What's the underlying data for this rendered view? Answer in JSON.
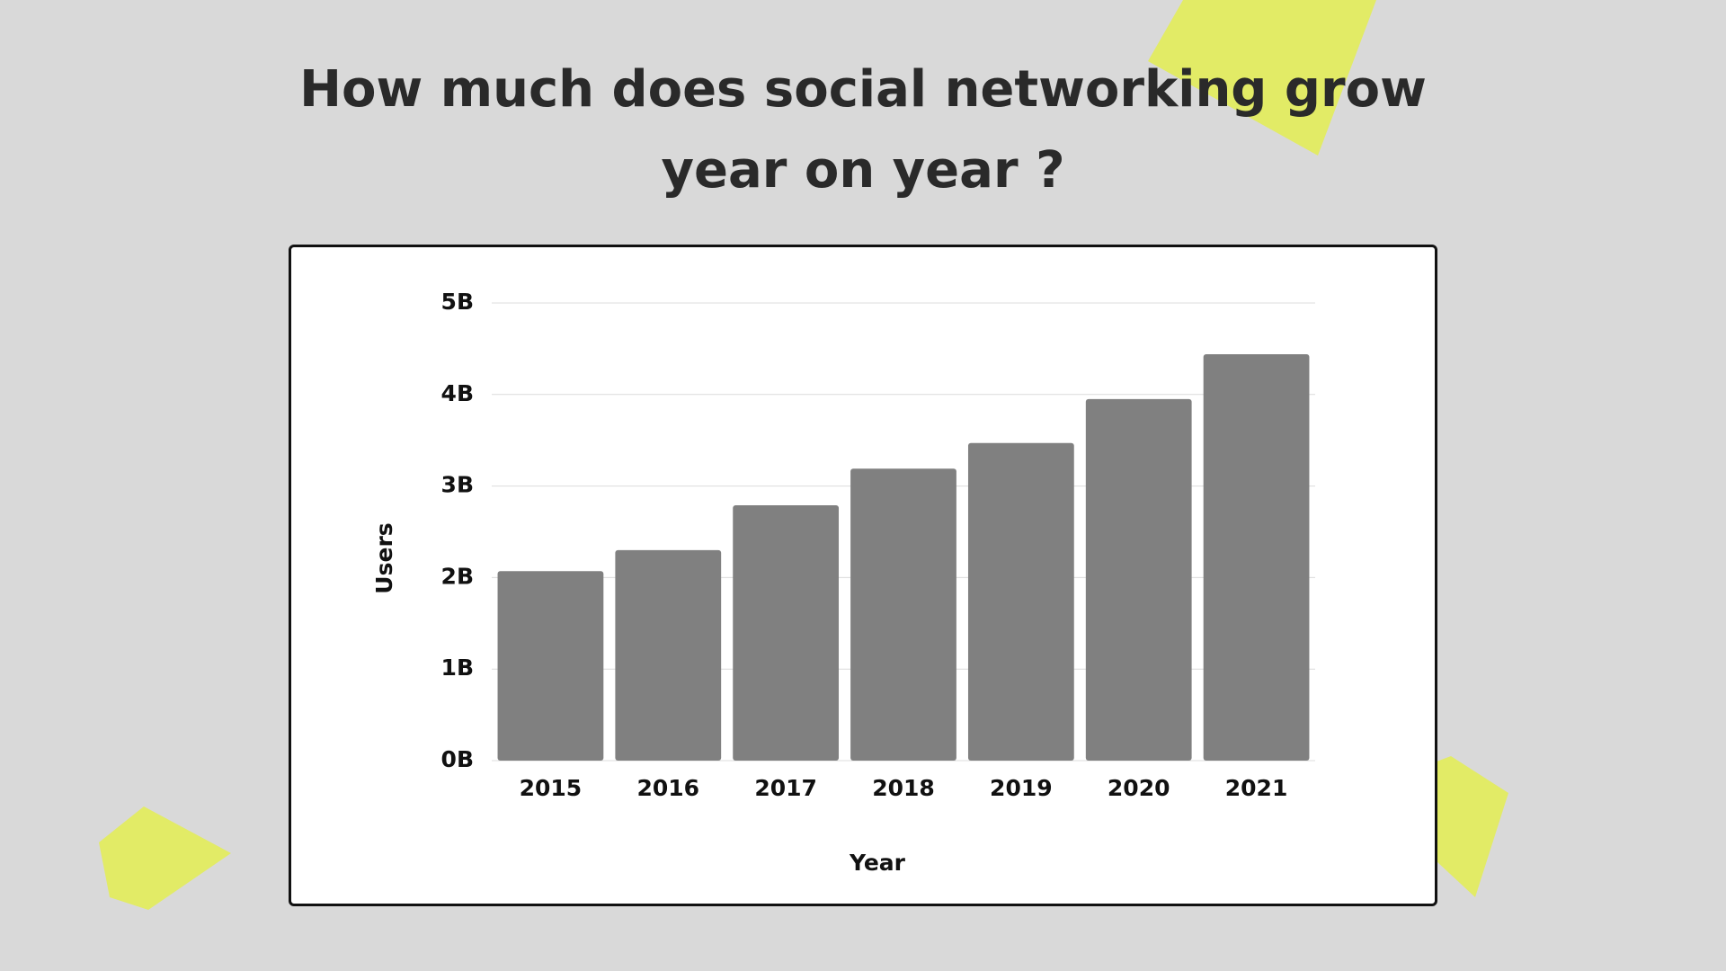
{
  "chart_data": {
    "type": "bar",
    "title": "How much does social networking grow year on year ?",
    "x_label": "Year",
    "y_label": "Users",
    "categories": [
      "2015",
      "2016",
      "2017",
      "2018",
      "2019",
      "2020",
      "2021"
    ],
    "values": [
      2.07,
      2.3,
      2.79,
      3.19,
      3.47,
      3.95,
      4.44
    ],
    "color": "#808080",
    "ylim": [
      0,
      5
    ],
    "yticks": [
      {
        "value": 0,
        "label": "0B"
      },
      {
        "value": 1,
        "label": "1B"
      },
      {
        "value": 2,
        "label": "2B"
      },
      {
        "value": 3,
        "label": "3B"
      },
      {
        "value": 4,
        "label": "4B"
      },
      {
        "value": 5,
        "label": "5B"
      }
    ],
    "grid": true
  }
}
